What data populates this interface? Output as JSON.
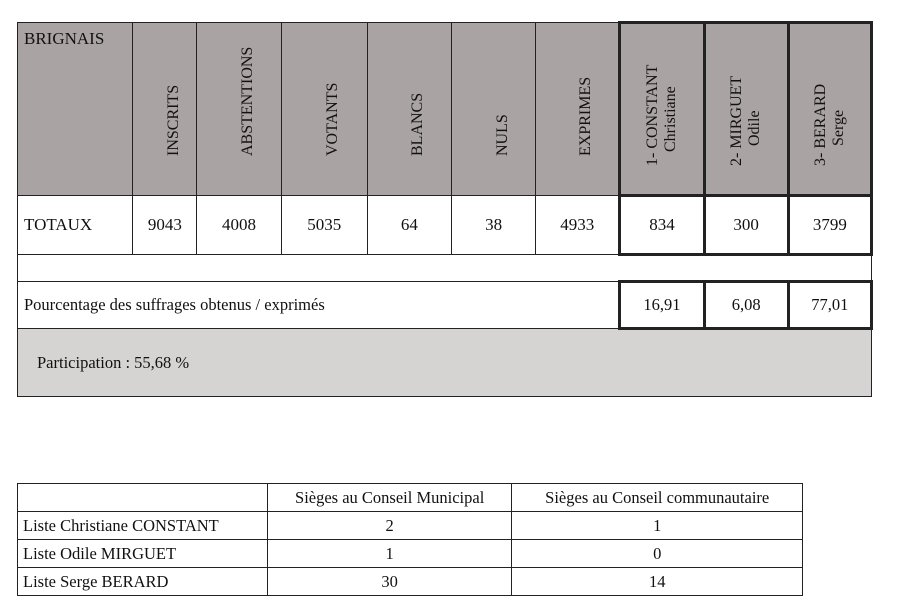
{
  "results": {
    "commune": "BRIGNAIS",
    "headers": [
      "INSCRITS",
      "ABSTENTIONS",
      "VOTANTS",
      "BLANCS",
      "NULS",
      "EXPRIMES"
    ],
    "candidates": [
      {
        "line1": "1- CONSTANT",
        "line2": "Christiane"
      },
      {
        "line1": "2- MIRGUET",
        "line2": "Odile"
      },
      {
        "line1": "3- BERARD",
        "line2": "Serge"
      }
    ],
    "totals_label": "TOTAUX",
    "totals": [
      "9043",
      "4008",
      "5035",
      "64",
      "38",
      "4933"
    ],
    "candidate_totals": [
      "834",
      "300",
      "3799"
    ],
    "percentage_label": "Pourcentage des suffrages obtenus / exprimés",
    "percentages": [
      "16,91",
      "6,08",
      "77,01"
    ],
    "participation": "Participation : 55,68 %"
  },
  "seats": {
    "headers": [
      "",
      "Sièges au Conseil Municipal",
      "Sièges au Conseil communautaire"
    ],
    "rows": [
      [
        "Liste Christiane CONSTANT",
        "2",
        "1"
      ],
      [
        "Liste Odile MIRGUET",
        "1",
        "0"
      ],
      [
        "Liste Serge BERARD",
        "30",
        "14"
      ]
    ]
  }
}
